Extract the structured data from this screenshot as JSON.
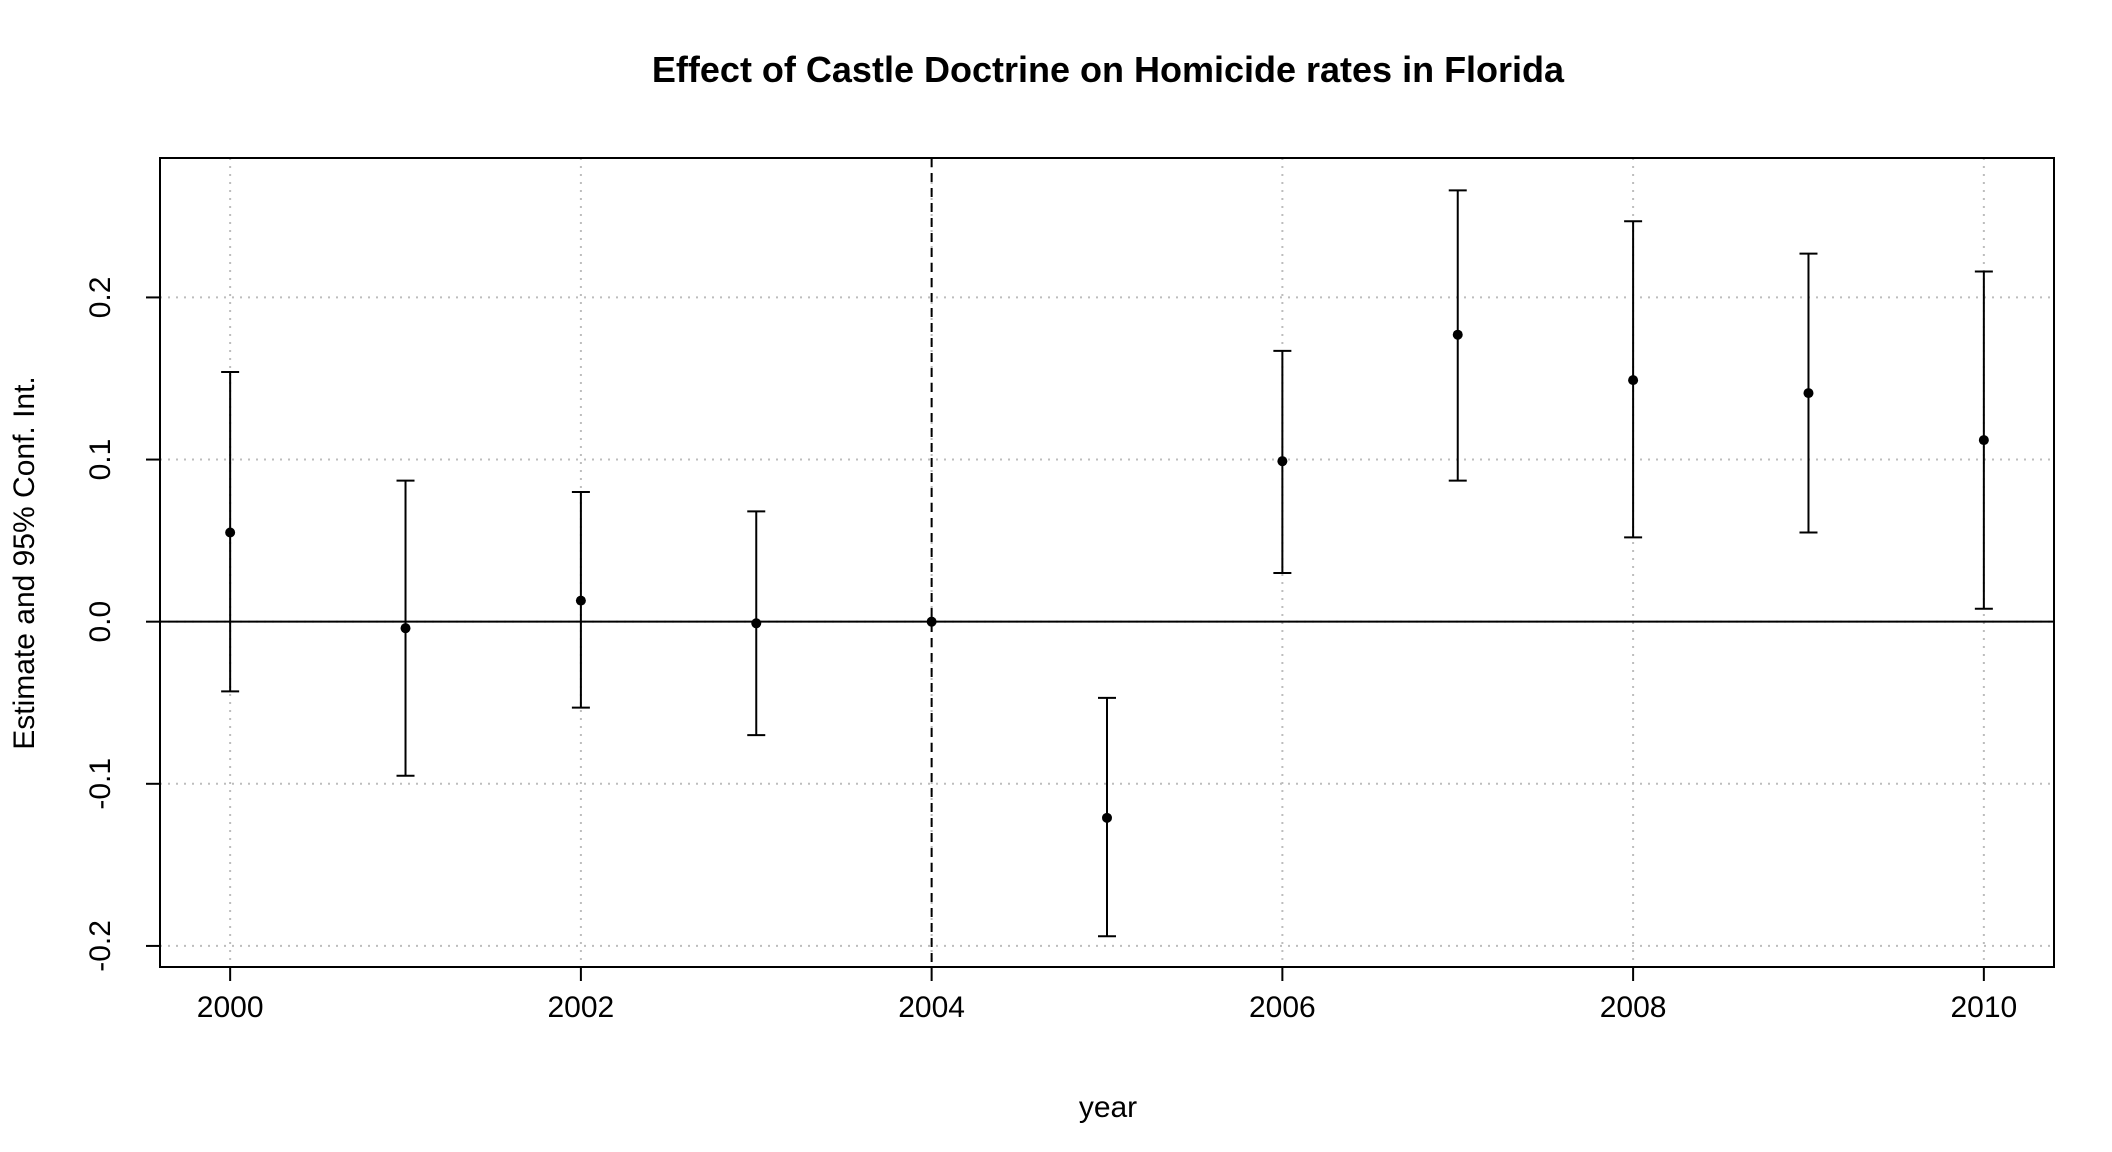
{
  "chart_data": {
    "type": "scatter",
    "title": "Effect of Castle Doctrine on Homicide rates in Florida",
    "xlabel": "year",
    "ylabel": "Estimate and 95% Conf. Int.",
    "xlim": [
      1999.6,
      2010.4
    ],
    "ylim": [
      -0.213,
      0.286
    ],
    "x_ticks": [
      2000,
      2002,
      2004,
      2006,
      2008,
      2010
    ],
    "y_ticks": [
      -0.2,
      -0.1,
      0.0,
      0.1,
      0.2
    ],
    "y_tick_labels": [
      "-0.2",
      "-0.1",
      "0.0",
      "0.1",
      "0.2"
    ],
    "grid": true,
    "reference_hline": 0,
    "reference_vline": 2004,
    "points": [
      {
        "year": 2000,
        "estimate": 0.055,
        "ci_low": -0.043,
        "ci_high": 0.154
      },
      {
        "year": 2001,
        "estimate": -0.004,
        "ci_low": -0.095,
        "ci_high": 0.087
      },
      {
        "year": 2002,
        "estimate": 0.013,
        "ci_low": -0.053,
        "ci_high": 0.08
      },
      {
        "year": 2003,
        "estimate": -0.001,
        "ci_low": -0.07,
        "ci_high": 0.068
      },
      {
        "year": 2004,
        "estimate": 0.0,
        "ci_low": 0.0,
        "ci_high": 0.0
      },
      {
        "year": 2005,
        "estimate": -0.121,
        "ci_low": -0.194,
        "ci_high": -0.047
      },
      {
        "year": 2006,
        "estimate": 0.099,
        "ci_low": 0.03,
        "ci_high": 0.167
      },
      {
        "year": 2007,
        "estimate": 0.177,
        "ci_low": 0.087,
        "ci_high": 0.266
      },
      {
        "year": 2008,
        "estimate": 0.149,
        "ci_low": 0.052,
        "ci_high": 0.247
      },
      {
        "year": 2009,
        "estimate": 0.141,
        "ci_low": 0.055,
        "ci_high": 0.227
      },
      {
        "year": 2010,
        "estimate": 0.112,
        "ci_low": 0.008,
        "ci_high": 0.216
      }
    ]
  }
}
